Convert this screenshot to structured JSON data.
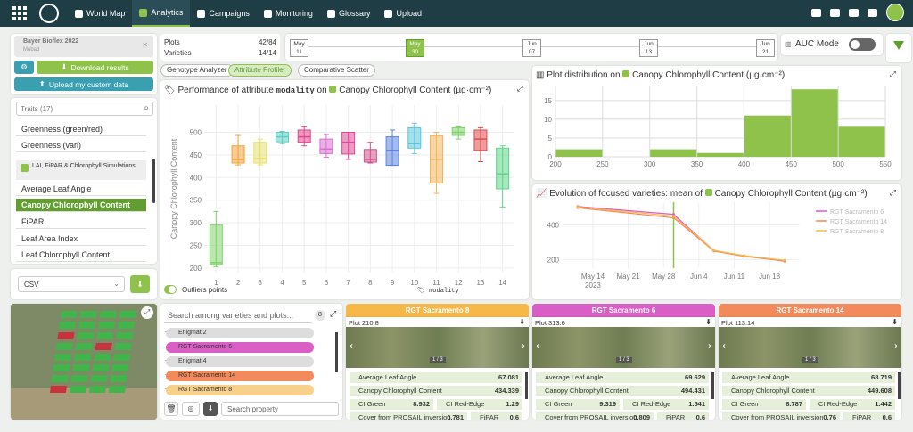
{
  "nav": {
    "items": [
      {
        "label": "World Map"
      },
      {
        "label": "Analytics"
      },
      {
        "label": "Campaigns"
      },
      {
        "label": "Monitoring"
      },
      {
        "label": "Glossary"
      },
      {
        "label": "Upload"
      }
    ]
  },
  "left": {
    "trial_name": "Bayer Bioflex 2022",
    "trial_sub": "Mobad",
    "download_label": "Download results",
    "upload_label": "Upload my custom data",
    "traits_placeholder": "Traits (17)",
    "traits": [
      "Greenness (green/red)",
      "Greenness (vari)"
    ],
    "group_label": "LAI, FiPAR & Chlorophyll Simulations",
    "group_traits": [
      "Average Leaf Angle",
      "Canopy Chlorophyll Content",
      "FiPAR",
      "Leaf Area Index",
      "Leaf Chlorophyll Content"
    ],
    "export_format": "CSV"
  },
  "counts": {
    "plots_label": "Plots",
    "plots_value": "42/84",
    "varieties_label": "Varieties",
    "varieties_value": "14/14"
  },
  "dates": [
    {
      "m": "May",
      "d": "11"
    },
    {
      "m": "May",
      "d": "30"
    },
    {
      "m": "Jun",
      "d": "07"
    },
    {
      "m": "Jun",
      "d": "13"
    },
    {
      "m": "Jun",
      "d": "21"
    }
  ],
  "auc_label": "AUC Mode",
  "tabs": [
    "Genotype Analyzer",
    "Attribute Profiler",
    "Comparative Scatter"
  ],
  "boxplot": {
    "title_prefix": "Performance of attribute",
    "modality": "modality",
    "on": "on",
    "attr": "Canopy Chlorophyll Content (µg·cm⁻²)",
    "ylabel": "Canopy Chlorophyll Content",
    "xfooter": "modality",
    "outliers_label": "Outliers points"
  },
  "dist": {
    "title_prefix": "Plot distribution on",
    "attr": "Canopy Chlorophyll Content (µg·cm⁻²)"
  },
  "evo": {
    "title_prefix": "Evolution of focused varieties: mean of",
    "attr": "Canopy Chlorophyll Content (µg·cm⁻²)",
    "legend": [
      "RGT Sacramento 6",
      "RGT Sacramento 14",
      "RGT Sacramento 8"
    ]
  },
  "search": {
    "placeholder": "Search among varieties and plots...",
    "count": "8",
    "prop_placeholder": "Search property"
  },
  "varlist": [
    "Enigmat 2",
    "RGT Sacramento 6",
    "Enigmat 4",
    "RGT Sacramento 14",
    "RGT Sacramento 8"
  ],
  "cards": [
    {
      "name": "RGT Sacramento 8",
      "plot": "Plot 210.8",
      "page": "1 / 3",
      "p1": "Average Leaf Angle",
      "v1": "67.081",
      "p2": "Canopy Chlorophyll Content",
      "v2": "434.339",
      "a": "CI Green",
      "av": "8.932",
      "b": "CI Red-Edge",
      "bv": "1.29",
      "c": "Cover from PROSAIL inversion",
      "cv": "0.781",
      "d": "FiPAR",
      "dv": "0.6",
      "color": "#f7b84a"
    },
    {
      "name": "RGT Sacramento 6",
      "plot": "Plot 313.6",
      "page": "1 / 3",
      "p1": "Average Leaf Angle",
      "v1": "69.629",
      "p2": "Canopy Chlorophyll Content",
      "v2": "494.431",
      "a": "CI Green",
      "av": "9.319",
      "b": "CI Red-Edge",
      "bv": "1.541",
      "c": "Cover from PROSAIL inversion",
      "cv": "0.809",
      "d": "FiPAR",
      "dv": "0.6",
      "color": "#d95fc6"
    },
    {
      "name": "RGT Sacramento 14",
      "plot": "Plot 113.14",
      "page": "1 / 3",
      "p1": "Average Leaf Angle",
      "v1": "68.719",
      "p2": "Canopy Chlorophyll Content",
      "v2": "449.608",
      "a": "CI Green",
      "av": "8.787",
      "b": "CI Red-Edge",
      "bv": "1.442",
      "c": "Cover from PROSAIL inversion",
      "cv": "0.76",
      "d": "FiPAR",
      "dv": "0.6",
      "color": "#f28a5c"
    }
  ],
  "chart_data": [
    {
      "type": "box",
      "title": "Performance of attribute modality on Canopy Chlorophyll Content (µg·cm⁻²)",
      "xlabel": "modality",
      "ylabel": "Canopy Chlorophyll Content",
      "ylim": [
        190,
        560
      ],
      "yticks": [
        200,
        250,
        300,
        350,
        400,
        450,
        500
      ],
      "categories": [
        "1",
        "2",
        "3",
        "4",
        "5",
        "6",
        "7",
        "8",
        "9",
        "10",
        "11",
        "12",
        "13",
        "14"
      ],
      "series": [
        {
          "values": [
            {
              "min": 203,
              "q1": 208,
              "med": 212,
              "q3": 295,
              "max": 325
            },
            {
              "min": 428,
              "q1": 432,
              "med": 440,
              "q3": 470,
              "max": 493
            },
            {
              "min": 428,
              "q1": 432,
              "med": 442,
              "q3": 478,
              "max": 485
            },
            {
              "min": 475,
              "q1": 479,
              "med": 490,
              "q3": 500,
              "max": 502
            },
            {
              "min": 470,
              "q1": 478,
              "med": 490,
              "q3": 505,
              "max": 512
            },
            {
              "min": 445,
              "q1": 453,
              "med": 463,
              "q3": 485,
              "max": 495
            },
            {
              "min": 440,
              "q1": 452,
              "med": 478,
              "q3": 500,
              "max": 500
            },
            {
              "min": 432,
              "q1": 434,
              "med": 440,
              "q3": 462,
              "max": 478
            },
            {
              "min": 427,
              "q1": 427,
              "med": 460,
              "q3": 490,
              "max": 505
            },
            {
              "min": 453,
              "q1": 465,
              "med": 475,
              "q3": 510,
              "max": 520
            },
            {
              "min": 365,
              "q1": 388,
              "med": 440,
              "q3": 492,
              "max": 500
            },
            {
              "min": 485,
              "q1": 493,
              "med": 500,
              "q3": 510,
              "max": 512
            },
            {
              "min": 435,
              "q1": 460,
              "med": 485,
              "q3": 505,
              "max": 510
            },
            {
              "min": 335,
              "q1": 375,
              "med": 408,
              "q3": 465,
              "max": 470
            }
          ]
        }
      ]
    },
    {
      "type": "bar",
      "title": "Plot distribution on Canopy Chlorophyll Content (µg·cm⁻²)",
      "x": [
        200,
        250,
        300,
        350,
        400,
        450,
        500
      ],
      "values": [
        2,
        0,
        2,
        1,
        11,
        18,
        8
      ],
      "xlim": [
        200,
        550
      ],
      "ylim": [
        0,
        19
      ],
      "yticks": [
        0,
        5,
        10,
        15
      ]
    },
    {
      "type": "line",
      "title": "Evolution of focused varieties: mean of Canopy Chlorophyll Content (µg·cm⁻²)",
      "x": [
        "2023-05-11",
        "2023-05-30",
        "2023-06-07",
        "2023-06-13",
        "2023-06-21"
      ],
      "xticks": [
        "May 14",
        "May 21",
        "May 28",
        "Jun 4",
        "Jun 11",
        "Jun 18"
      ],
      "year": "2023",
      "yticks": [
        200,
        400
      ],
      "ylim": [
        150,
        530
      ],
      "series": [
        {
          "name": "RGT Sacramento 6",
          "values": [
            505,
            460,
            250,
            220,
            190
          ],
          "color": "#d95fc6"
        },
        {
          "name": "RGT Sacramento 14",
          "values": [
            498,
            440,
            248,
            218,
            192
          ],
          "color": "#f28a5c"
        },
        {
          "name": "RGT Sacramento 8",
          "values": [
            502,
            450,
            252,
            222,
            195
          ],
          "color": "#f7b84a"
        }
      ]
    }
  ]
}
